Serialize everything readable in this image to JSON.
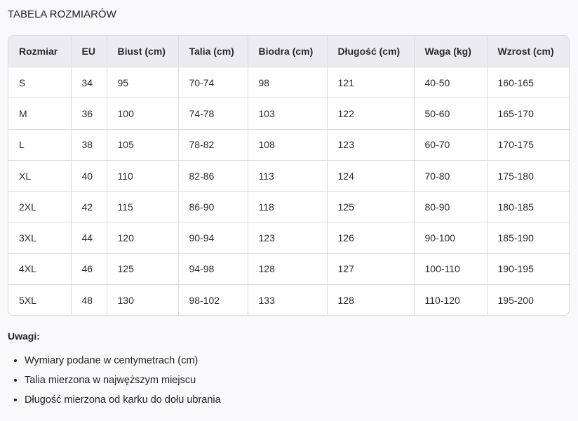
{
  "title": "TABELA ROZMIARÓW",
  "table": {
    "headers": [
      "Rozmiar",
      "EU",
      "Biust (cm)",
      "Talia (cm)",
      "Biodra (cm)",
      "Długość (cm)",
      "Waga (kg)",
      "Wzrost (cm)"
    ],
    "rows": [
      [
        "S",
        "34",
        "95",
        "70-74",
        "98",
        "121",
        "40-50",
        "160-165"
      ],
      [
        "M",
        "36",
        "100",
        "74-78",
        "103",
        "122",
        "50-60",
        "165-170"
      ],
      [
        "L",
        "38",
        "105",
        "78-82",
        "108",
        "123",
        "60-70",
        "170-175"
      ],
      [
        "XL",
        "40",
        "110",
        "82-86",
        "113",
        "124",
        "70-80",
        "175-180"
      ],
      [
        "2XL",
        "42",
        "115",
        "86-90",
        "118",
        "125",
        "80-90",
        "180-185"
      ],
      [
        "3XL",
        "44",
        "120",
        "90-94",
        "123",
        "126",
        "90-100",
        "185-190"
      ],
      [
        "4XL",
        "46",
        "125",
        "94-98",
        "128",
        "127",
        "100-110",
        "190-195"
      ],
      [
        "5XL",
        "48",
        "130",
        "98-102",
        "133",
        "128",
        "110-120",
        "195-200"
      ]
    ]
  },
  "notes": {
    "title": "Uwagi:",
    "items": [
      "Wymiary podane w centymetrach (cm)",
      "Talia mierzona w najwęższym miejscu",
      "Długość mierzona od karku do dołu ubrania"
    ]
  }
}
